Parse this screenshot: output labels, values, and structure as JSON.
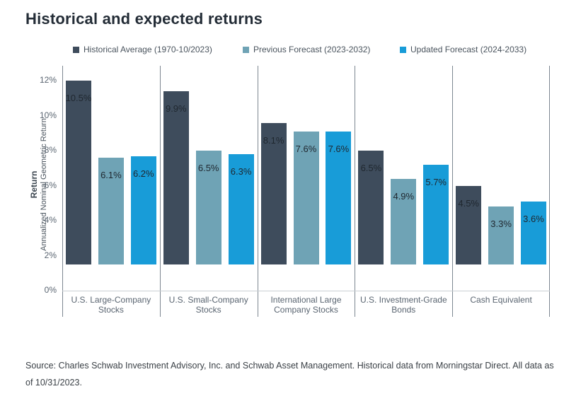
{
  "page": {
    "title": "Historical and expected returns",
    "source": "Source: Charles Schwab Investment Advisory, Inc. and Schwab Asset Management. Historical data from Morningstar Direct. All data as of 10/31/2023."
  },
  "chart_data": {
    "type": "bar",
    "title": "Historical and expected returns",
    "categories": [
      "U.S. Large-Company Stocks",
      "U.S. Small-Company Stocks",
      "International Large Company Stocks",
      "U.S. Investment-Grade Bonds",
      "Cash Equivalent"
    ],
    "series": [
      {
        "name": "Historical Average (1970-10/2023)",
        "color": "#3e4c5c",
        "values": [
          10.5,
          9.9,
          8.1,
          6.5,
          4.5
        ]
      },
      {
        "name": "Previous Forecast (2023-2032)",
        "color": "#6fa3b5",
        "values": [
          6.1,
          6.5,
          7.6,
          4.9,
          3.3
        ]
      },
      {
        "name": "Updated Forecast (2024-2033)",
        "color": "#189cd8",
        "values": [
          6.2,
          6.3,
          7.6,
          5.7,
          3.6
        ]
      }
    ],
    "value_suffix": "%",
    "ylabel_bold": "Return",
    "ylabel": "Annualized Nominal Geometric Return",
    "yticks": [
      0,
      2,
      4,
      6,
      8,
      10,
      12
    ],
    "ytick_suffix": "%",
    "ylim": [
      0,
      12
    ],
    "grid": false,
    "legend_position": "top",
    "axis_line_color": "#7d8791",
    "baseline_color": "#c9ced3"
  }
}
